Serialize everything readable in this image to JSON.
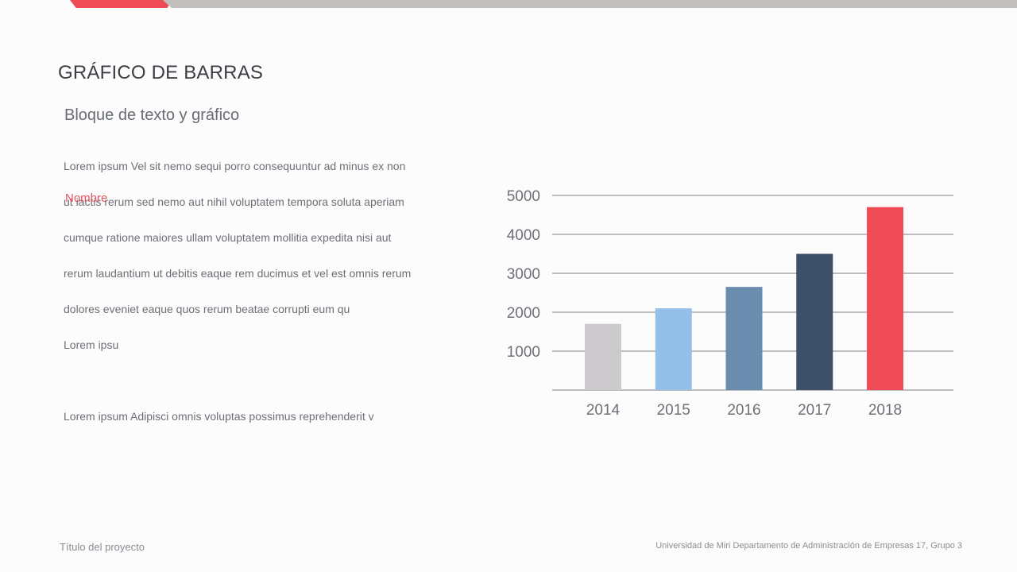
{
  "slide": {
    "title": "GRÁFICO DE BARRAS",
    "subtitle": "Bloque de texto y gráfico",
    "accent_label": "Nombre",
    "body_lines": [
      "Lorem ipsum Vel sit nemo sequi porro consequuntur ad minus ex non",
      "ut iactis rerum sed nemo aut nihil voluptatem tempora soluta aperiam",
      "cumque ratione maiores ullam voluptatem mollitia expedita nisi aut",
      "rerum laudantium ut debitis eaque rem ducimus et vel est omnis rerum",
      "dolores eveniet eaque quos rerum beatae corrupti eum qu",
      "Lorem ipsu"
    ],
    "body_second": "Lorem ipsum Adipisci omnis voluptas possimus reprehenderit v",
    "footer_left": "Título del proyecto",
    "footer_right": "Universidad de Miri Departamento de Administración de Empresas 17, Grupo 3"
  },
  "colors": {
    "accent": "#f04c58",
    "band_gray": "#c4bfbf",
    "grid": "#7d7d85"
  },
  "chart_data": {
    "type": "bar",
    "title": "",
    "xlabel": "",
    "ylabel": "",
    "categories": [
      "2014",
      "2015",
      "2016",
      "2017",
      "2018"
    ],
    "values": [
      1700,
      2100,
      2650,
      3500,
      4700
    ],
    "bar_colors": [
      "#cdcacd",
      "#94bfe8",
      "#6a8cae",
      "#3e4f68",
      "#f04c58"
    ],
    "ylim": [
      0,
      5000
    ],
    "yticks": [
      1000,
      2000,
      3000,
      4000,
      5000
    ],
    "grid": true,
    "legend": "none"
  }
}
